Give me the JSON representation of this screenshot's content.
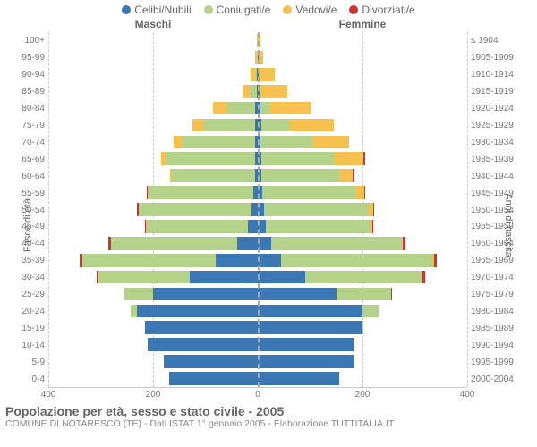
{
  "legend": [
    {
      "label": "Celibi/Nubili",
      "color": "#3b77b3"
    },
    {
      "label": "Coniugati/e",
      "color": "#b4d28a"
    },
    {
      "label": "Vedovi/e",
      "color": "#f6c14f"
    },
    {
      "label": "Divorziati/e",
      "color": "#cc3333"
    }
  ],
  "header": {
    "maschi": "Maschi",
    "femmine": "Femmine"
  },
  "axis": {
    "left_title": "Fasce di età",
    "right_title": "Anni di nascita"
  },
  "xaxis": {
    "ticks": [
      "400",
      "200",
      "0",
      "200",
      "400"
    ],
    "max": 400
  },
  "age_labels": [
    "100+",
    "95-99",
    "90-94",
    "85-89",
    "80-84",
    "75-79",
    "70-74",
    "65-69",
    "60-64",
    "55-59",
    "50-54",
    "45-49",
    "40-44",
    "35-39",
    "30-34",
    "25-29",
    "20-24",
    "15-19",
    "10-14",
    "5-9",
    "0-4"
  ],
  "birth_labels": [
    "≤ 1904",
    "1905-1909",
    "1910-1914",
    "1915-1919",
    "1920-1924",
    "1925-1929",
    "1930-1934",
    "1935-1939",
    "1940-1944",
    "1945-1949",
    "1950-1954",
    "1955-1959",
    "1960-1964",
    "1965-1969",
    "1970-1974",
    "1975-1979",
    "1980-1984",
    "1985-1989",
    "1990-1994",
    "1995-1999",
    "2000-2004"
  ],
  "rows": [
    {
      "m": [
        0,
        0,
        2,
        0
      ],
      "f": [
        0,
        0,
        5,
        0
      ]
    },
    {
      "m": [
        0,
        0,
        5,
        0
      ],
      "f": [
        1,
        0,
        10,
        0
      ]
    },
    {
      "m": [
        2,
        2,
        10,
        0
      ],
      "f": [
        2,
        1,
        30,
        0
      ]
    },
    {
      "m": [
        2,
        12,
        15,
        0
      ],
      "f": [
        3,
        3,
        50,
        0
      ]
    },
    {
      "m": [
        5,
        55,
        25,
        0
      ],
      "f": [
        5,
        18,
        80,
        0
      ]
    },
    {
      "m": [
        5,
        100,
        20,
        0
      ],
      "f": [
        6,
        55,
        85,
        0
      ]
    },
    {
      "m": [
        5,
        140,
        15,
        0
      ],
      "f": [
        5,
        100,
        70,
        0
      ]
    },
    {
      "m": [
        5,
        170,
        10,
        0
      ],
      "f": [
        7,
        140,
        55,
        3
      ]
    },
    {
      "m": [
        5,
        160,
        3,
        0
      ],
      "f": [
        6,
        150,
        25,
        3
      ]
    },
    {
      "m": [
        8,
        200,
        2,
        2
      ],
      "f": [
        8,
        180,
        15,
        3
      ]
    },
    {
      "m": [
        12,
        215,
        1,
        3
      ],
      "f": [
        12,
        200,
        8,
        3
      ]
    },
    {
      "m": [
        18,
        195,
        0,
        3
      ],
      "f": [
        15,
        200,
        3,
        3
      ]
    },
    {
      "m": [
        40,
        240,
        0,
        5
      ],
      "f": [
        25,
        250,
        2,
        5
      ]
    },
    {
      "m": [
        80,
        255,
        0,
        5
      ],
      "f": [
        45,
        290,
        1,
        6
      ]
    },
    {
      "m": [
        130,
        175,
        0,
        3
      ],
      "f": [
        90,
        225,
        0,
        5
      ]
    },
    {
      "m": [
        200,
        55,
        0,
        0
      ],
      "f": [
        150,
        105,
        0,
        2
      ]
    },
    {
      "m": [
        230,
        12,
        0,
        0
      ],
      "f": [
        200,
        32,
        0,
        0
      ]
    },
    {
      "m": [
        215,
        0,
        0,
        0
      ],
      "f": [
        200,
        2,
        0,
        0
      ]
    },
    {
      "m": [
        210,
        0,
        0,
        0
      ],
      "f": [
        185,
        0,
        0,
        0
      ]
    },
    {
      "m": [
        180,
        0,
        0,
        0
      ],
      "f": [
        185,
        0,
        0,
        0
      ]
    },
    {
      "m": [
        170,
        0,
        0,
        0
      ],
      "f": [
        155,
        0,
        0,
        0
      ]
    }
  ],
  "footer": {
    "title": "Popolazione per età, sesso e stato civile - 2005",
    "subtitle": "COMUNE DI NOTARESCO (TE) - Dati ISTAT 1° gennaio 2005 - Elaborazione TUTTITALIA.IT"
  },
  "style": {
    "row_height_pct": 4.7619,
    "background": "#ffffff",
    "grid_color": "#cccccc",
    "text_color": "#777777"
  }
}
